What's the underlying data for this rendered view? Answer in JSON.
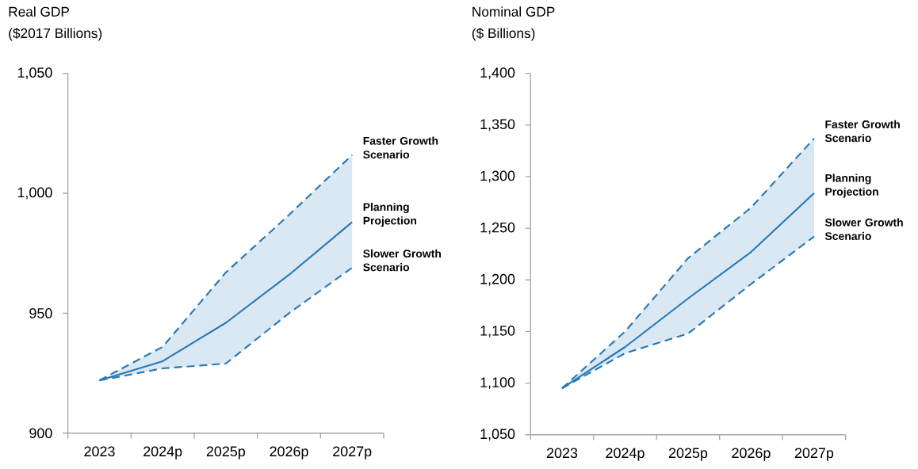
{
  "chart_data": [
    {
      "type": "line",
      "title": "Real GDP",
      "subtitle": "($2017 Billions)",
      "categories": [
        "2023",
        "2024p",
        "2025p",
        "2026p",
        "2027p"
      ],
      "ylim": [
        900,
        1050
      ],
      "yticks": [
        900,
        950,
        {
          "value": 1000,
          "label": "1,000"
        },
        {
          "value": 1050,
          "label": "1,050"
        }
      ],
      "legend": false,
      "grid": false,
      "series": [
        {
          "name": "Faster Growth Scenario",
          "color": "#2878b8",
          "line_style": "dashed",
          "values": [
            922,
            936,
            967,
            991,
            1016
          ]
        },
        {
          "name": "Planning Projection",
          "color": "#2878b8",
          "line_style": "solid",
          "values": [
            922,
            930,
            946,
            966,
            988
          ],
          "lower": [
            922,
            927,
            929,
            950,
            969
          ],
          "upper": [
            922,
            936,
            967,
            991,
            1016
          ]
        },
        {
          "name": "Slower Growth Scenario",
          "color": "#2878b8",
          "line_style": "dashed",
          "values": [
            922,
            927,
            929,
            950,
            969
          ]
        }
      ]
    },
    {
      "type": "line",
      "title": "Nominal GDP",
      "subtitle": "($ Billions)",
      "categories": [
        "2023",
        "2024p",
        "2025p",
        "2026p",
        "2027p"
      ],
      "ylim": [
        1050,
        1400
      ],
      "yticks": [
        {
          "value": 1050,
          "label": "1,050"
        },
        {
          "value": 1100,
          "label": "1,100"
        },
        {
          "value": 1150,
          "label": "1,150"
        },
        {
          "value": 1200,
          "label": "1,200"
        },
        {
          "value": 1250,
          "label": "1,250"
        },
        {
          "value": 1300,
          "label": "1,300"
        },
        {
          "value": 1350,
          "label": "1,350"
        },
        {
          "value": 1400,
          "label": "1,400"
        }
      ],
      "legend": false,
      "grid": false,
      "series": [
        {
          "name": "Faster Growth Scenario",
          "color": "#2878b8",
          "line_style": "dashed",
          "values": [
            1095,
            1150,
            1221,
            1270,
            1337
          ]
        },
        {
          "name": "Planning Projection",
          "color": "#2878b8",
          "line_style": "solid",
          "values": [
            1095,
            1135,
            1182,
            1227,
            1284
          ],
          "lower": [
            1095,
            1129,
            1148,
            1196,
            1242
          ],
          "upper": [
            1095,
            1150,
            1221,
            1270,
            1337
          ]
        },
        {
          "name": "Slower Growth Scenario",
          "color": "#2878b8",
          "line_style": "dashed",
          "values": [
            1095,
            1129,
            1148,
            1196,
            1242
          ]
        }
      ]
    }
  ]
}
